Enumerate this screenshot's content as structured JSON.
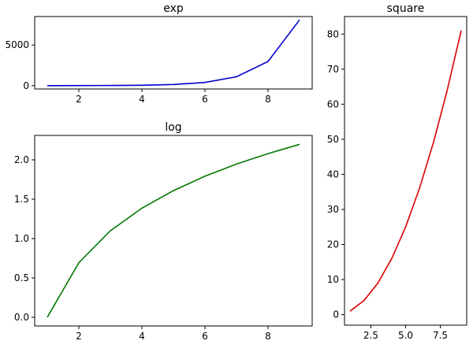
{
  "chart_data": [
    {
      "type": "line",
      "title": "exp",
      "color": "#0000cc",
      "x": [
        1,
        2,
        3,
        4,
        5,
        6,
        7,
        8,
        9
      ],
      "y": [
        2.72,
        7.39,
        20.09,
        54.6,
        148.41,
        403.43,
        1096.63,
        2980.96,
        8103.08
      ],
      "xlim": [
        0.6,
        9.4
      ],
      "ylim": [
        -405,
        8508
      ],
      "xticks": [
        2,
        4,
        6,
        8
      ],
      "xtick_labels": [
        "2",
        "4",
        "6",
        "8"
      ],
      "yticks": [
        0,
        5000
      ],
      "ytick_labels": [
        "0",
        "5000"
      ],
      "grid": false
    },
    {
      "type": "line",
      "title": "log",
      "color": "#007700",
      "x": [
        1,
        2,
        3,
        4,
        5,
        6,
        7,
        8,
        9
      ],
      "y": [
        0,
        0.693,
        1.099,
        1.386,
        1.609,
        1.792,
        1.946,
        2.079,
        2.197
      ],
      "xlim": [
        0.6,
        9.4
      ],
      "ylim": [
        -0.11,
        2.31
      ],
      "xticks": [
        2,
        4,
        6,
        8
      ],
      "xtick_labels": [
        "2",
        "4",
        "6",
        "8"
      ],
      "yticks": [
        0,
        0.5,
        1,
        1.5,
        2
      ],
      "ytick_labels": [
        "0.0",
        "0.5",
        "1.0",
        "1.5",
        "2.0"
      ],
      "grid": false
    },
    {
      "type": "line",
      "title": "square",
      "color": "#dd0000",
      "x": [
        1,
        2,
        3,
        4,
        5,
        6,
        7,
        8,
        9
      ],
      "y": [
        1,
        4,
        9,
        16,
        25,
        36,
        49,
        64,
        81
      ],
      "xlim": [
        0.6,
        9.4
      ],
      "ylim": [
        -3,
        85
      ],
      "xticks": [
        2.5,
        5,
        7.5
      ],
      "xtick_labels": [
        "2.5",
        "5.0",
        "7.5"
      ],
      "yticks": [
        0,
        10,
        20,
        30,
        40,
        50,
        60,
        70,
        80
      ],
      "ytick_labels": [
        "0",
        "10",
        "20",
        "30",
        "40",
        "50",
        "60",
        "70",
        "80"
      ],
      "grid": false
    }
  ]
}
